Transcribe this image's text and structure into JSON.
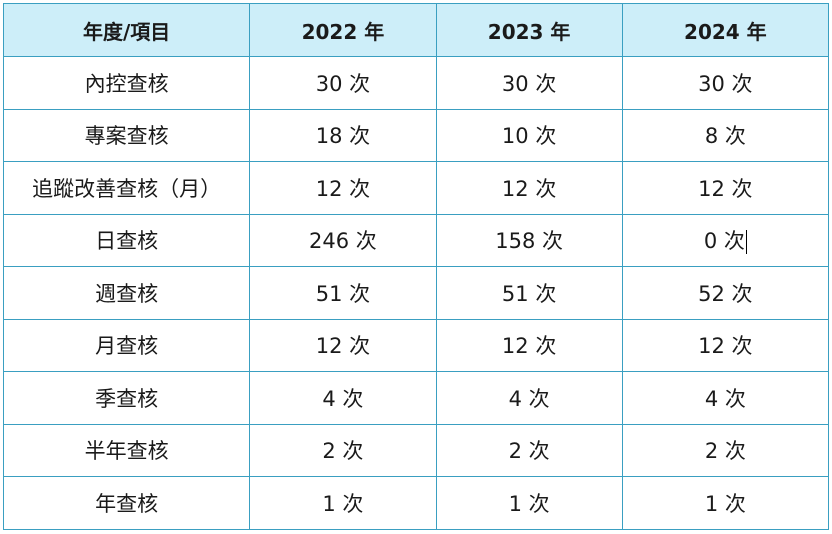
{
  "header": {
    "item_label": "年度/項目",
    "years": [
      "2022 年",
      "2023 年",
      "2024 年"
    ]
  },
  "rows": [
    {
      "item": "內控查核",
      "values": [
        "30 次",
        "30 次",
        "30 次"
      ]
    },
    {
      "item": "專案查核",
      "values": [
        "18 次",
        "10 次",
        "8 次"
      ]
    },
    {
      "item": "追蹤改善查核（月）",
      "values": [
        "12 次",
        "12 次",
        "12 次"
      ]
    },
    {
      "item": "日查核",
      "values": [
        "246 次",
        "158 次",
        "0 次"
      ]
    },
    {
      "item": "週查核",
      "values": [
        "51 次",
        "51 次",
        "52 次"
      ]
    },
    {
      "item": "月查核",
      "values": [
        "12 次",
        "12 次",
        "12 次"
      ]
    },
    {
      "item": "季查核",
      "values": [
        "4 次",
        "4 次",
        "4 次"
      ]
    },
    {
      "item": "半年查核",
      "values": [
        "2 次",
        "2 次",
        "2 次"
      ]
    },
    {
      "item": "年查核",
      "values": [
        "1 次",
        "1 次",
        "1 次"
      ]
    }
  ],
  "colors": {
    "header_bg": "#cdeef9",
    "border": "#3a9fc1"
  }
}
